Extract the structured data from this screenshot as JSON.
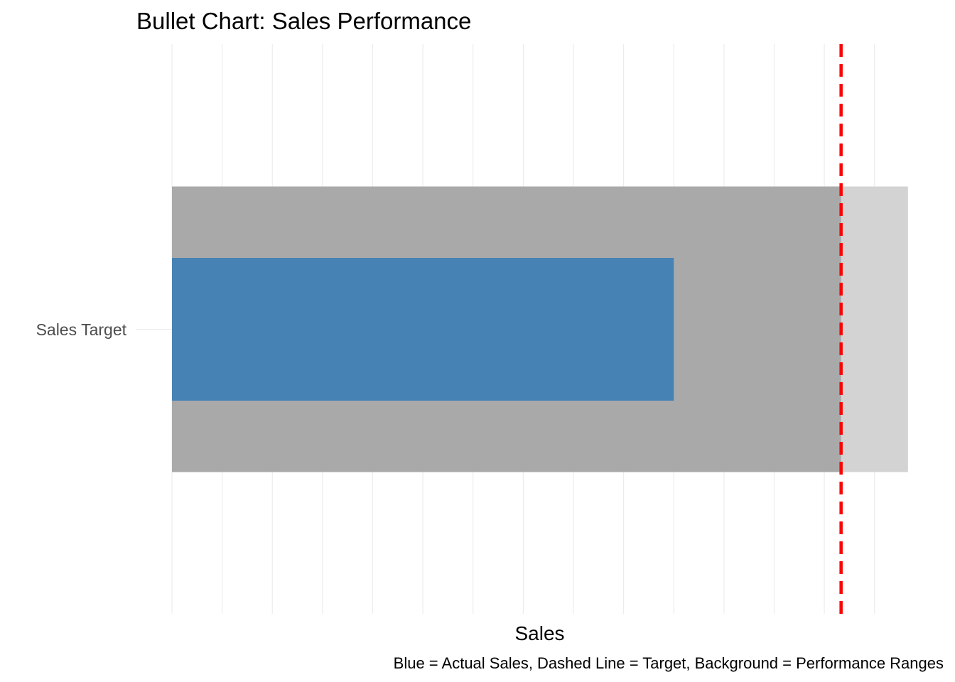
{
  "chart_data": {
    "type": "bar",
    "subtype": "bullet",
    "title": "Bullet Chart: Sales Performance",
    "xlabel": "Sales",
    "ylabel": "",
    "caption": "Blue = Actual Sales, Dashed Line = Target, Background = Performance Ranges",
    "categories": [
      "Sales Target"
    ],
    "xlim": [
      0,
      110
    ],
    "x_ticks_shown": false,
    "grid": true,
    "legend": "none",
    "ranges": [
      {
        "from": 0,
        "to": 110,
        "color": "#d3d3d3"
      },
      {
        "from": 0,
        "to": 100,
        "color": "#a9a9a9"
      }
    ],
    "actual": {
      "value": 75,
      "color": "#4682b4"
    },
    "target": {
      "value": 100,
      "color": "#ff0000",
      "line_style": "dashed"
    }
  }
}
